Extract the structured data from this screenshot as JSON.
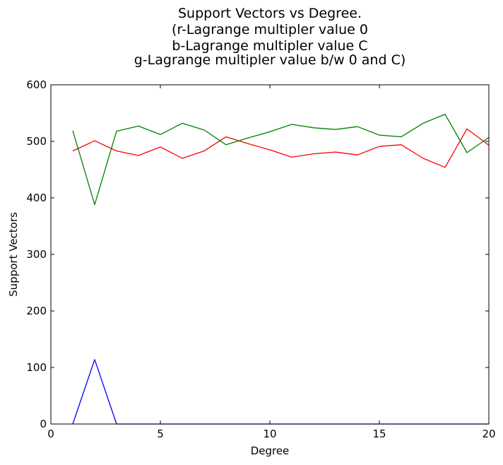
{
  "chart_data": {
    "type": "line",
    "title_lines": [
      "Support Vectors vs Degree.",
      "(r-Lagrange multipler value 0",
      "b-Lagrange multipler value C",
      "g-Lagrange multipler value b/w 0 and C)"
    ],
    "xlabel": "Degree",
    "ylabel": "Support Vectors",
    "xlim": [
      0,
      20
    ],
    "ylim": [
      0,
      600
    ],
    "xticks": [
      0,
      5,
      10,
      15,
      20
    ],
    "yticks": [
      0,
      100,
      200,
      300,
      400,
      500,
      600
    ],
    "grid": false,
    "legend": "none",
    "x": [
      1,
      2,
      3,
      4,
      5,
      6,
      7,
      8,
      9,
      10,
      11,
      12,
      13,
      14,
      15,
      16,
      17,
      18,
      19,
      20
    ],
    "series": [
      {
        "color": "#ff0000",
        "values": [
          483,
          501,
          483,
          475,
          490,
          470,
          483,
          508,
          496,
          485,
          472,
          478,
          481,
          476,
          491,
          494,
          470,
          454,
          522,
          493
        ]
      },
      {
        "color": "#0000ff",
        "values": [
          0,
          114,
          0,
          0,
          0,
          0,
          0,
          0,
          0,
          0,
          0,
          0,
          0,
          0,
          0,
          0,
          0,
          0,
          0,
          0
        ]
      },
      {
        "color": "#008000",
        "values": [
          519,
          388,
          518,
          527,
          512,
          532,
          520,
          494,
          506,
          517,
          530,
          524,
          521,
          526,
          511,
          508,
          532,
          548,
          480,
          507
        ]
      }
    ]
  }
}
